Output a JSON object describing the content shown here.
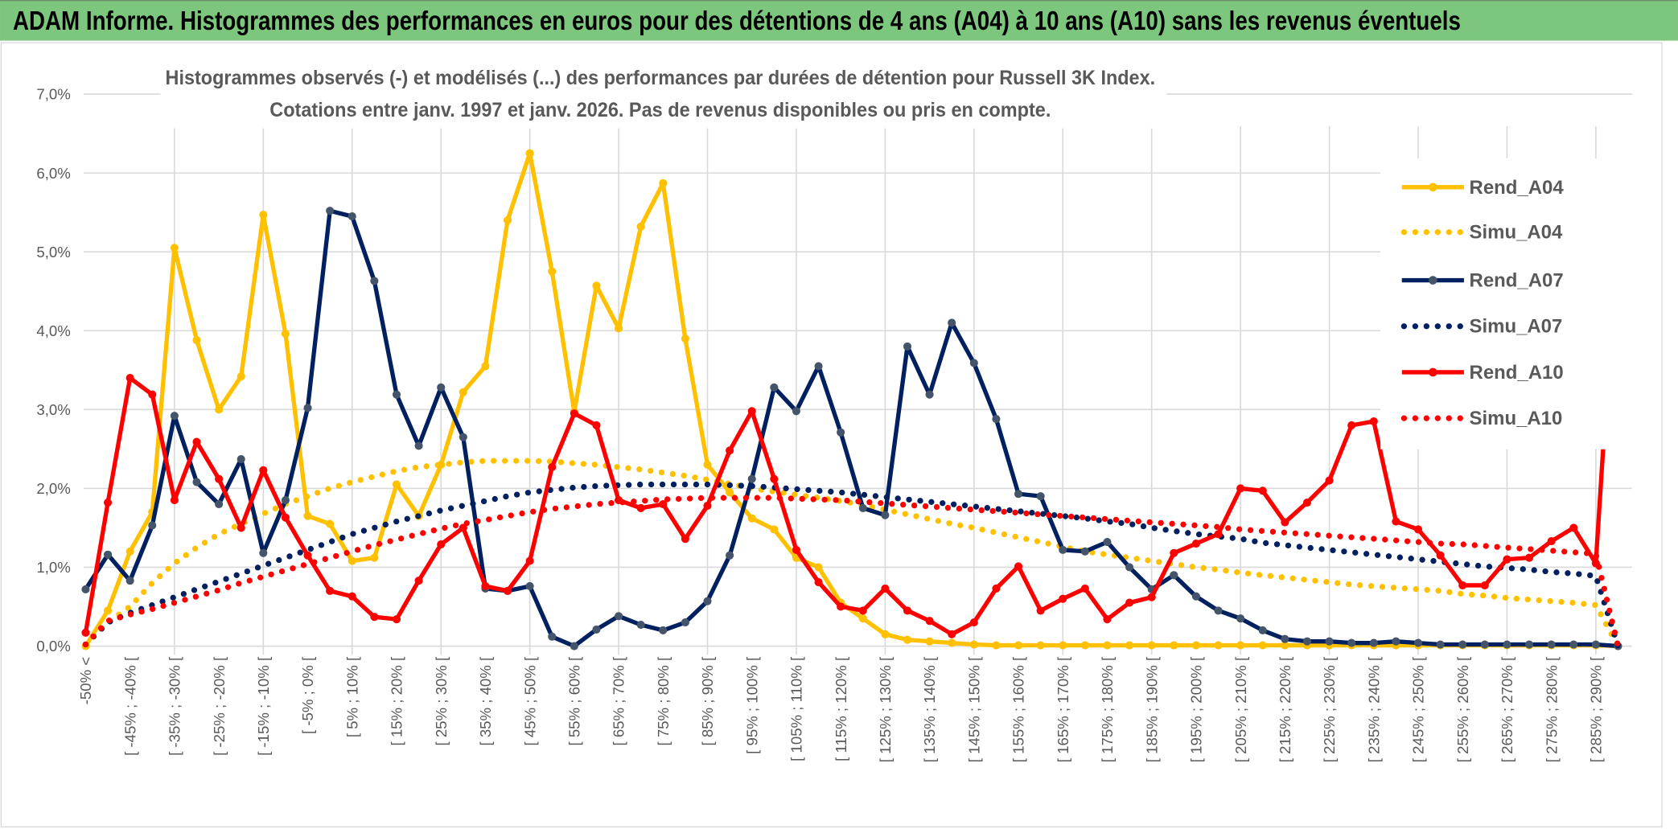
{
  "header": {
    "title": "ADAM Informe. Histogrammes des performances en euros pour des détentions de 4 ans (A04) à 10 ans (A10) sans les revenus éventuels",
    "background": "#7DC67D"
  },
  "chart_data": {
    "type": "line",
    "title": [
      "Histogrammes observés (-) et modélisés (...) des performances par durées de détention pour Russell 3K Index.",
      "Cotations entre janv. 1997 et janv. 2026. Pas de revenus disponibles ou pris en compte."
    ],
    "xlabel": "",
    "ylabel": "",
    "ylim": [
      0,
      7
    ],
    "y_unit": "%",
    "y_tick_labels": [
      "0,0%",
      "1,0%",
      "2,0%",
      "3,0%",
      "4,0%",
      "5,0%",
      "6,0%",
      "7,0%"
    ],
    "grid": true,
    "legend": "right",
    "x_tick_labels_every_second_point": [
      "-50% <",
      "[ -45% ; -40% [",
      "[ -35% ; -30% [",
      "[ -25% ; -20% [",
      "[ -15% ; -10% [",
      "[ -5% ; 0% [",
      "[ 5% ; 10% [",
      "[ 15% ; 20% [",
      "[ 25% ; 30% [",
      "[ 35% ; 40% [",
      "[ 45% ; 50% [",
      "[ 55% ; 60% [",
      "[ 65% ; 70% [",
      "[ 75% ; 80% [",
      "[ 85% ; 90% [",
      "[ 95% ; 100% [",
      "[ 105% ; 110% [",
      "[ 115% ; 120% [",
      "[ 125% ; 130% [",
      "[ 135% ; 140% [",
      "[ 145% ; 150% [",
      "[ 155% ; 160% [",
      "[ 165% ; 170% [",
      "[ 175% ; 180% [",
      "[ 185% ; 190% [",
      "[ 195% ; 200% [",
      "[ 205% ; 210% [",
      "[ 215% ; 220% [",
      "[ 225% ; 230% [",
      "[ 235% ; 240% [",
      "[ 245% ; 250% [",
      "[ 255% ; 260% [",
      "[ 265% ; 270% [",
      "[ 275% ; 280% [",
      "[ 285% ; 290% ["
    ],
    "series": [
      {
        "name": "Rend_A04",
        "style": "solid",
        "color": "#FFC000",
        "marker_color": "#FFC000",
        "values": [
          0.0,
          0.45,
          1.2,
          1.7,
          5.05,
          3.88,
          3.0,
          3.42,
          5.47,
          3.96,
          1.65,
          1.55,
          1.08,
          1.12,
          2.05,
          1.65,
          2.3,
          3.22,
          3.55,
          5.4,
          6.25,
          4.75,
          2.97,
          4.57,
          4.03,
          5.32,
          5.87,
          3.9,
          2.3,
          1.95,
          1.62,
          1.48,
          1.12,
          1.0,
          0.55,
          0.35,
          0.15,
          0.08,
          0.06,
          0.04,
          0.02,
          0.01,
          0.01,
          0.01,
          0.01,
          0.01,
          0.01,
          0.01,
          0.01,
          0.01,
          0.01,
          0.01,
          0.01,
          0.01,
          0.01,
          0.01,
          0.01,
          0.01,
          0.01,
          0.01,
          0.01,
          0.01,
          0.01,
          0.01,
          0.01,
          0.01,
          0.01,
          0.01,
          0.01,
          0.0
        ]
      },
      {
        "name": "Simu_A04",
        "style": "dotted",
        "color": "#FFC000",
        "values": [
          0.02,
          0.3,
          0.5,
          0.8,
          1.05,
          1.25,
          1.42,
          1.55,
          1.68,
          1.8,
          1.9,
          2.0,
          2.08,
          2.15,
          2.22,
          2.27,
          2.3,
          2.33,
          2.35,
          2.35,
          2.35,
          2.34,
          2.32,
          2.3,
          2.27,
          2.24,
          2.2,
          2.16,
          2.11,
          2.06,
          2.0,
          1.96,
          1.92,
          1.88,
          1.84,
          1.79,
          1.73,
          1.67,
          1.61,
          1.55,
          1.5,
          1.44,
          1.38,
          1.32,
          1.26,
          1.2,
          1.16,
          1.12,
          1.08,
          1.04,
          1.0,
          0.97,
          0.93,
          0.9,
          0.87,
          0.84,
          0.81,
          0.78,
          0.76,
          0.74,
          0.72,
          0.7,
          0.66,
          0.64,
          0.61,
          0.59,
          0.57,
          0.55,
          0.52,
          0.0
        ]
      },
      {
        "name": "Rend_A07",
        "style": "solid",
        "color": "#002060",
        "marker_color": "#44546A",
        "values": [
          0.72,
          1.16,
          0.83,
          1.53,
          2.92,
          2.08,
          1.8,
          2.37,
          1.18,
          1.85,
          3.02,
          5.52,
          5.45,
          4.63,
          3.19,
          2.54,
          3.28,
          2.65,
          0.73,
          0.7,
          0.76,
          0.12,
          0.0,
          0.21,
          0.38,
          0.27,
          0.2,
          0.3,
          0.57,
          1.15,
          2.12,
          3.28,
          2.98,
          3.55,
          2.71,
          1.75,
          1.66,
          3.8,
          3.19,
          4.1,
          3.59,
          2.88,
          1.93,
          1.9,
          1.22,
          1.2,
          1.32,
          1.0,
          0.72,
          0.9,
          0.63,
          0.45,
          0.35,
          0.2,
          0.09,
          0.06,
          0.06,
          0.04,
          0.04,
          0.06,
          0.04,
          0.02,
          0.02,
          0.02,
          0.02,
          0.02,
          0.02,
          0.02,
          0.02,
          0.0
        ]
      },
      {
        "name": "Simu_A07",
        "style": "dotted",
        "color": "#002060",
        "values": [
          0.02,
          0.3,
          0.42,
          0.52,
          0.62,
          0.72,
          0.82,
          0.92,
          1.02,
          1.12,
          1.22,
          1.32,
          1.42,
          1.5,
          1.58,
          1.65,
          1.72,
          1.78,
          1.84,
          1.9,
          1.95,
          1.98,
          2.01,
          2.03,
          2.04,
          2.05,
          2.05,
          2.05,
          2.05,
          2.04,
          2.03,
          2.01,
          1.99,
          1.97,
          1.95,
          1.92,
          1.89,
          1.86,
          1.83,
          1.8,
          1.77,
          1.74,
          1.71,
          1.68,
          1.65,
          1.62,
          1.58,
          1.55,
          1.5,
          1.46,
          1.42,
          1.39,
          1.36,
          1.31,
          1.28,
          1.25,
          1.22,
          1.19,
          1.16,
          1.13,
          1.1,
          1.07,
          1.04,
          1.01,
          0.99,
          0.97,
          0.94,
          0.92,
          0.89,
          0.0
        ]
      },
      {
        "name": "Rend_A10",
        "style": "solid",
        "color": "#FF0000",
        "marker_color": "#FF0000",
        "values": [
          0.17,
          1.82,
          3.4,
          3.19,
          1.85,
          2.59,
          2.12,
          1.5,
          2.23,
          1.63,
          1.15,
          0.7,
          0.63,
          0.37,
          0.34,
          0.83,
          1.29,
          1.5,
          0.76,
          0.7,
          1.08,
          2.27,
          2.95,
          2.8,
          1.85,
          1.75,
          1.8,
          1.36,
          1.78,
          2.48,
          2.98,
          2.12,
          1.22,
          0.81,
          0.5,
          0.45,
          0.73,
          0.45,
          0.32,
          0.15,
          0.3,
          0.73,
          1.01,
          0.45,
          0.6,
          0.73,
          0.34,
          0.55,
          0.62,
          1.18,
          1.3,
          1.42,
          2.0,
          1.97,
          1.57,
          1.82,
          2.1,
          2.8,
          2.85,
          1.58,
          1.48,
          1.15,
          0.77,
          0.77,
          1.1,
          1.12,
          1.33,
          1.5,
          1.05,
          5.45
        ]
      },
      {
        "name": "Simu_A10",
        "style": "dotted",
        "color": "#FF0000",
        "values": [
          0.02,
          0.32,
          0.4,
          0.47,
          0.55,
          0.63,
          0.71,
          0.8,
          0.88,
          0.96,
          1.04,
          1.12,
          1.2,
          1.28,
          1.35,
          1.42,
          1.49,
          1.55,
          1.6,
          1.65,
          1.7,
          1.74,
          1.77,
          1.8,
          1.82,
          1.84,
          1.86,
          1.87,
          1.88,
          1.88,
          1.88,
          1.88,
          1.87,
          1.86,
          1.85,
          1.83,
          1.81,
          1.79,
          1.77,
          1.75,
          1.73,
          1.71,
          1.69,
          1.67,
          1.65,
          1.63,
          1.61,
          1.59,
          1.57,
          1.55,
          1.53,
          1.51,
          1.48,
          1.46,
          1.44,
          1.42,
          1.4,
          1.38,
          1.36,
          1.34,
          1.32,
          1.3,
          1.29,
          1.27,
          1.25,
          1.23,
          1.21,
          1.19,
          1.17,
          0.0
        ]
      }
    ]
  }
}
